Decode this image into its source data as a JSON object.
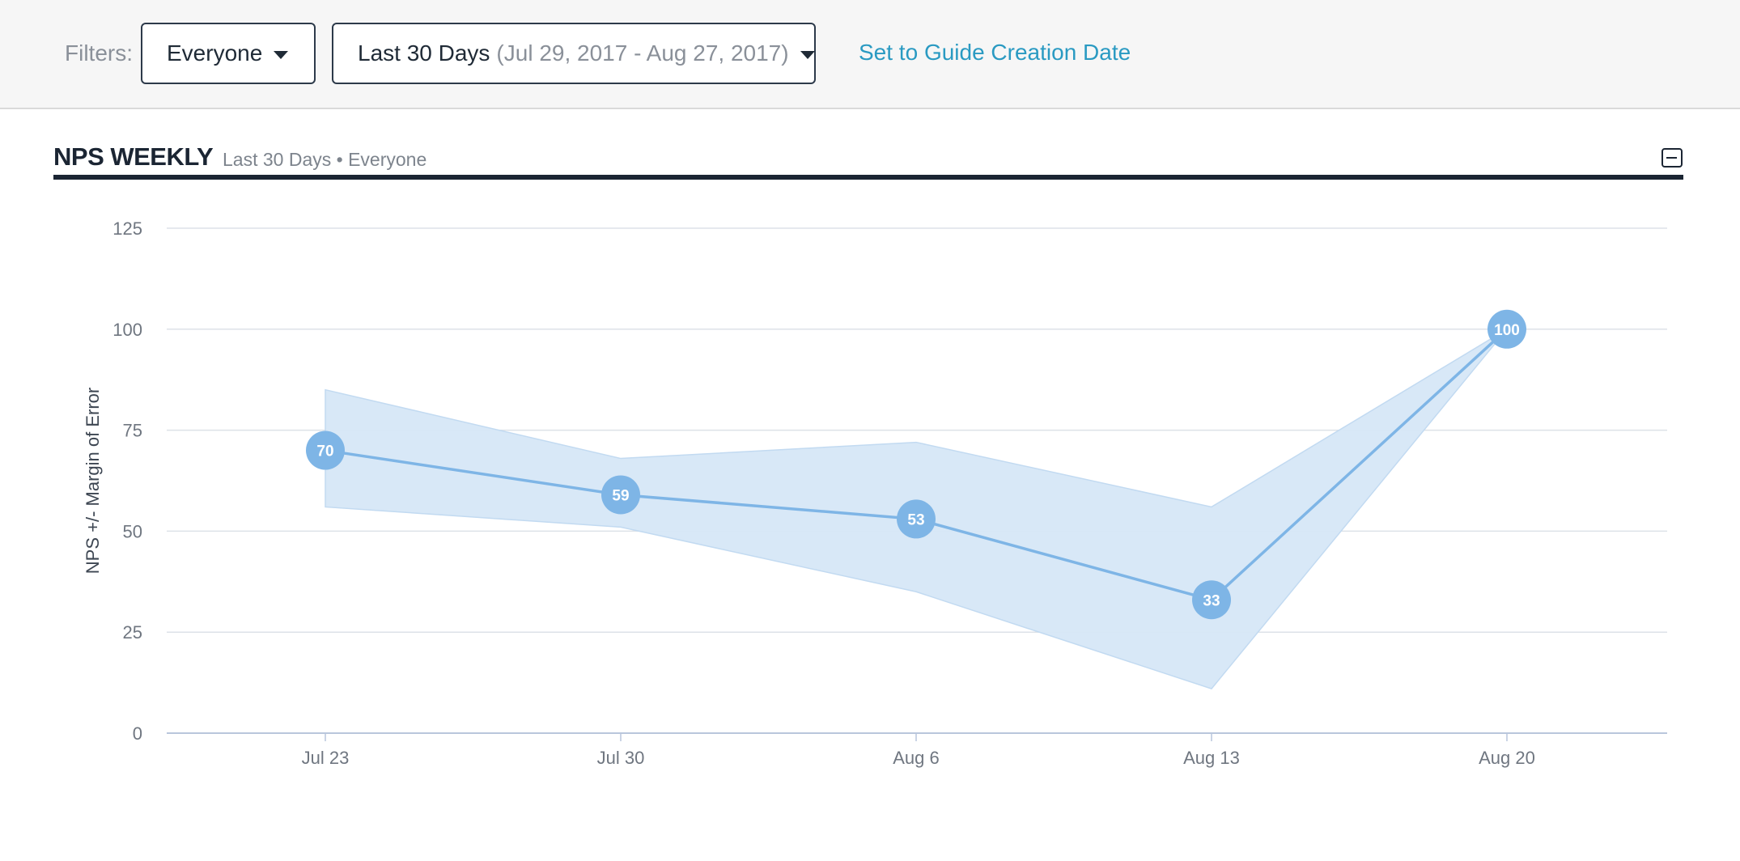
{
  "filters": {
    "label": "Filters:",
    "audience": "Everyone",
    "date_range_label": "Last 30 Days",
    "date_range_detail": "(Jul 29, 2017 - Aug 27, 2017)",
    "guide_link": "Set to Guide Creation Date"
  },
  "widget": {
    "title": "NPS WEEKLY",
    "subtitle": "Last 30 Days • Everyone"
  },
  "colors": {
    "line": "#7eb5e6",
    "band": "#d6e7f7",
    "point": "#7eb5e6",
    "link": "#2a9ac2",
    "grid": "#dde2e8"
  },
  "chart_data": {
    "type": "line",
    "title": "",
    "xlabel": "",
    "ylabel": "NPS +/- Margin of Error",
    "categories": [
      "Jul 23",
      "Jul 30",
      "Aug 6",
      "Aug 13",
      "Aug 20"
    ],
    "ylim": [
      0,
      125
    ],
    "yticks": [
      0,
      25,
      50,
      75,
      100,
      125
    ],
    "grid": true,
    "series": [
      {
        "values": [
          70,
          59,
          53,
          33,
          100
        ],
        "labels": [
          "70",
          "59",
          "53",
          "33",
          "100"
        ],
        "upper": [
          85,
          68,
          72,
          56,
          100
        ],
        "lower": [
          56,
          51,
          35,
          11,
          100
        ]
      }
    ]
  }
}
